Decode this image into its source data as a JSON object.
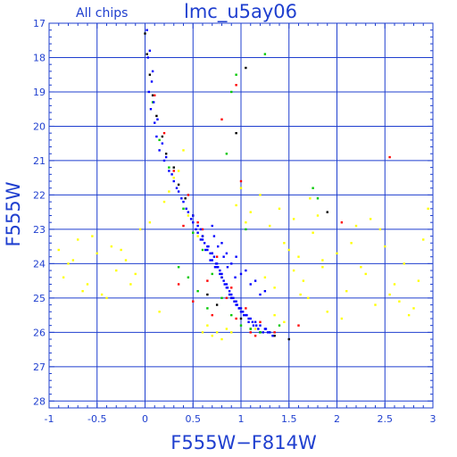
{
  "chart_data": {
    "type": "scatter",
    "title": "lmc_u5ay06",
    "subtitle": "All chips",
    "xlabel": "F555W−F814W",
    "ylabel": "F555W",
    "xlim": [
      -1,
      3
    ],
    "ylim": [
      28.2,
      17
    ],
    "y_inverted": true,
    "grid": true,
    "x_ticks": [
      -1,
      -0.5,
      0,
      0.5,
      1,
      1.5,
      2,
      2.5,
      3
    ],
    "x_tick_labels": [
      "-1",
      "-0.5",
      "0",
      "0.5",
      "1",
      "1.5",
      "2",
      "2.5",
      "3"
    ],
    "y_ticks": [
      17,
      18,
      19,
      20,
      21,
      22,
      23,
      24,
      25,
      26,
      27,
      28
    ],
    "y_tick_labels": [
      "17",
      "18",
      "19",
      "20",
      "21",
      "22",
      "23",
      "24",
      "25",
      "26",
      "27",
      "28"
    ],
    "colors": {
      "axis": "#1f3fcf",
      "grid": "#1f3fcf",
      "points": [
        "#0000ff",
        "#ff0000",
        "#00c800",
        "#000000",
        "#ffff00"
      ]
    },
    "series": [
      {
        "color": "#0000ff",
        "x": [
          0.02,
          0.05,
          0.08,
          0.04,
          0.06,
          0.1,
          0.12,
          0.15,
          0.2,
          0.25,
          0.3,
          0.35,
          0.4,
          0.45,
          0.5,
          0.55,
          0.6,
          0.65,
          0.7,
          0.75,
          0.8,
          0.85,
          0.9,
          0.95,
          1.0,
          1.05,
          1.1,
          1.15,
          1.2,
          1.25,
          1.3,
          0.7,
          0.75,
          0.8,
          0.85,
          0.9,
          0.95,
          1.0,
          0.6,
          0.65,
          0.72,
          0.78,
          0.88,
          0.98,
          1.08,
          0.55,
          0.62,
          0.68,
          0.74,
          0.82,
          0.92,
          1.02,
          1.12,
          0.5,
          0.58,
          0.66,
          0.76,
          0.86,
          0.96,
          1.06,
          1.16,
          1.26,
          0.03,
          0.07,
          0.09,
          0.13,
          0.18,
          0.22,
          0.28,
          0.33,
          0.38,
          0.43,
          0.48,
          0.53,
          0.58,
          0.63,
          0.68,
          0.73,
          0.78,
          0.83,
          0.88,
          0.93,
          0.98,
          1.03,
          1.08,
          1.13,
          1.18,
          1.23,
          1.28,
          1.33,
          0.9,
          1.0,
          1.1,
          1.2,
          0.95,
          1.05,
          1.15,
          1.25,
          0.8,
          0.85,
          0.7,
          0.72,
          0.76,
          0.82,
          0.86,
          0.94
        ],
        "y": [
          17.2,
          17.8,
          18.4,
          19.0,
          19.5,
          19.9,
          20.3,
          20.7,
          21.0,
          21.3,
          21.6,
          21.9,
          22.2,
          22.5,
          22.8,
          23.1,
          23.3,
          23.5,
          23.7,
          24.0,
          24.3,
          24.6,
          24.9,
          25.1,
          25.3,
          25.5,
          25.6,
          25.7,
          25.8,
          25.9,
          26.0,
          23.9,
          24.1,
          24.4,
          24.7,
          25.0,
          25.2,
          25.4,
          23.2,
          23.6,
          23.8,
          24.2,
          24.8,
          25.3,
          25.6,
          22.9,
          23.4,
          23.7,
          24.0,
          24.5,
          25.0,
          25.4,
          25.7,
          22.6,
          23.0,
          23.5,
          24.1,
          24.7,
          25.2,
          25.5,
          25.8,
          25.9,
          18.0,
          18.7,
          19.3,
          19.8,
          20.5,
          20.9,
          21.4,
          21.8,
          22.1,
          22.4,
          22.7,
          23.0,
          23.3,
          23.6,
          23.9,
          24.1,
          24.3,
          24.6,
          24.9,
          25.1,
          25.3,
          25.5,
          25.7,
          25.8,
          25.9,
          26.0,
          26.0,
          26.1,
          24.0,
          24.3,
          24.6,
          24.9,
          23.8,
          24.2,
          24.5,
          24.8,
          23.4,
          23.7,
          22.9,
          23.2,
          23.5,
          23.8,
          24.1,
          24.4
        ]
      },
      {
        "color": "#ff0000",
        "x": [
          0.1,
          0.2,
          0.3,
          0.45,
          0.6,
          0.75,
          0.9,
          1.05,
          1.2,
          1.35,
          0.85,
          0.95,
          1.15,
          0.65,
          0.55,
          0.4,
          1.0,
          0.8,
          1.6,
          2.05,
          2.55,
          0.95,
          1.1,
          0.7,
          0.5,
          0.35
        ],
        "y": [
          19.1,
          20.2,
          21.3,
          22.0,
          23.0,
          23.8,
          24.7,
          25.3,
          25.7,
          26.0,
          25.0,
          25.6,
          26.1,
          24.5,
          22.8,
          22.9,
          21.6,
          19.8,
          25.8,
          22.8,
          20.9,
          18.8,
          26.0,
          25.5,
          25.1,
          24.6
        ]
      },
      {
        "color": "#00c800",
        "x": [
          0.08,
          0.15,
          0.25,
          0.4,
          0.5,
          0.6,
          0.7,
          0.8,
          0.9,
          1.0,
          1.1,
          1.2,
          1.3,
          1.4,
          0.85,
          0.95,
          0.55,
          0.65,
          1.75,
          1.8,
          1.25,
          0.9,
          1.05,
          0.45,
          0.35
        ],
        "y": [
          19.3,
          20.4,
          21.2,
          22.4,
          23.1,
          23.6,
          24.3,
          25.0,
          25.5,
          25.8,
          25.9,
          26.0,
          26.0,
          25.8,
          20.8,
          18.5,
          24.8,
          25.3,
          21.8,
          22.1,
          17.9,
          19.0,
          23.0,
          24.4,
          24.1
        ]
      },
      {
        "color": "#000000",
        "x": [
          0.0,
          0.02,
          0.05,
          0.08,
          0.12,
          0.18,
          0.22,
          0.3,
          0.35,
          0.42,
          0.5,
          0.6,
          0.7,
          0.8,
          0.9,
          1.0,
          1.1,
          1.2,
          1.35,
          1.5,
          0.95,
          1.05,
          1.9,
          0.65,
          0.75
        ],
        "y": [
          17.3,
          17.9,
          18.5,
          19.1,
          19.7,
          20.3,
          20.8,
          21.2,
          21.7,
          22.1,
          22.6,
          23.2,
          23.7,
          24.4,
          25.0,
          25.6,
          25.9,
          26.0,
          26.1,
          26.2,
          20.2,
          18.3,
          22.5,
          24.9,
          25.2
        ]
      },
      {
        "color": "#ffff00",
        "x": [
          -0.9,
          -0.85,
          -0.75,
          -0.7,
          -0.6,
          -0.5,
          -0.45,
          -0.35,
          -0.3,
          -0.2,
          -0.15,
          -0.8,
          -0.65,
          -0.55,
          -0.4,
          -0.25,
          -0.1,
          0.05,
          0.25,
          0.35,
          0.45,
          0.55,
          0.65,
          0.75,
          0.85,
          1.1,
          1.2,
          1.3,
          1.4,
          1.45,
          1.55,
          1.6,
          1.65,
          1.7,
          1.75,
          1.8,
          1.85,
          1.9,
          2.0,
          2.1,
          2.2,
          2.3,
          2.4,
          2.5,
          2.6,
          2.7,
          2.8,
          2.9,
          2.95,
          1.25,
          1.35,
          1.5,
          1.62,
          1.72,
          1.85,
          2.05,
          2.25,
          2.45,
          2.65,
          2.85,
          0.95,
          1.0,
          1.05,
          0.2,
          0.3,
          0.4,
          0.15,
          -0.05,
          0.6,
          0.7,
          0.8,
          1.15,
          1.35,
          1.55,
          1.45,
          2.15,
          2.35,
          2.55,
          2.75,
          0.9
        ],
        "y": [
          23.6,
          24.4,
          23.9,
          23.3,
          24.6,
          23.7,
          24.9,
          23.5,
          24.2,
          23.9,
          24.6,
          24.0,
          24.8,
          23.2,
          25.0,
          23.6,
          24.3,
          22.8,
          21.9,
          21.3,
          22.6,
          23.2,
          25.8,
          26.0,
          25.9,
          22.5,
          22.0,
          22.9,
          22.4,
          23.4,
          22.7,
          23.8,
          24.5,
          25.0,
          23.1,
          22.6,
          24.1,
          25.4,
          23.7,
          24.8,
          22.9,
          24.3,
          25.2,
          23.5,
          24.6,
          24.0,
          25.3,
          23.3,
          22.4,
          24.4,
          25.5,
          23.6,
          24.9,
          22.1,
          23.9,
          25.6,
          24.1,
          23.0,
          25.1,
          24.5,
          22.3,
          21.8,
          22.8,
          22.2,
          21.5,
          20.7,
          25.4,
          23.0,
          26.0,
          26.1,
          26.2,
          25.9,
          24.7,
          24.2,
          25.7,
          23.4,
          22.7,
          24.9,
          25.5,
          26.0
        ]
      }
    ]
  }
}
